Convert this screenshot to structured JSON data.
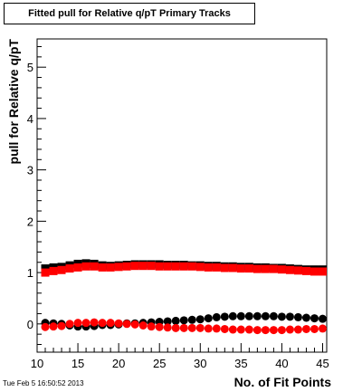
{
  "chart_data": {
    "type": "scatter",
    "title": "Fitted pull for Relative q/pT Primary Tracks",
    "xlabel": "No. of Fit Points",
    "ylabel": "pull for Relative q/pT",
    "xlim": [
      10,
      45.5
    ],
    "ylim": [
      -0.55,
      5.55
    ],
    "xticks": [
      10,
      15,
      20,
      25,
      30,
      35,
      40,
      45
    ],
    "yticks": [
      0,
      1,
      2,
      3,
      4,
      5
    ],
    "grid": false,
    "legend": "none",
    "x": [
      11,
      12,
      13,
      14,
      15,
      16,
      17,
      18,
      19,
      20,
      21,
      22,
      23,
      24,
      25,
      26,
      27,
      28,
      29,
      30,
      31,
      32,
      33,
      34,
      35,
      36,
      37,
      38,
      39,
      40,
      41,
      42,
      43,
      44,
      45
    ],
    "series": [
      {
        "color": "#000000",
        "marker": "square",
        "values": [
          1.08,
          1.1,
          1.11,
          1.14,
          1.17,
          1.18,
          1.17,
          1.14,
          1.13,
          1.14,
          1.15,
          1.16,
          1.16,
          1.16,
          1.16,
          1.15,
          1.15,
          1.15,
          1.14,
          1.14,
          1.13,
          1.13,
          1.12,
          1.12,
          1.11,
          1.11,
          1.1,
          1.1,
          1.09,
          1.09,
          1.08,
          1.07,
          1.06,
          1.06,
          1.06
        ]
      },
      {
        "color": "#ff0000",
        "marker": "square",
        "values": [
          1.0,
          1.03,
          1.05,
          1.08,
          1.1,
          1.12,
          1.12,
          1.1,
          1.1,
          1.11,
          1.12,
          1.13,
          1.13,
          1.13,
          1.12,
          1.12,
          1.12,
          1.12,
          1.12,
          1.11,
          1.1,
          1.1,
          1.09,
          1.09,
          1.08,
          1.08,
          1.07,
          1.07,
          1.07,
          1.06,
          1.05,
          1.04,
          1.03,
          1.02,
          1.02
        ]
      },
      {
        "color": "#000000",
        "marker": "circle",
        "values": [
          0.02,
          0.01,
          0.0,
          -0.03,
          -0.05,
          -0.05,
          -0.04,
          -0.02,
          -0.02,
          -0.01,
          0.01,
          0.01,
          0.02,
          0.03,
          0.04,
          0.05,
          0.06,
          0.07,
          0.08,
          0.09,
          0.11,
          0.13,
          0.14,
          0.15,
          0.15,
          0.15,
          0.15,
          0.15,
          0.15,
          0.14,
          0.14,
          0.13,
          0.12,
          0.11,
          0.1
        ]
      },
      {
        "color": "#ff0000",
        "marker": "circle",
        "values": [
          -0.06,
          -0.05,
          -0.04,
          0.0,
          0.02,
          0.02,
          0.03,
          0.02,
          0.02,
          0.01,
          0.0,
          -0.01,
          -0.03,
          -0.05,
          -0.06,
          -0.07,
          -0.08,
          -0.08,
          -0.08,
          -0.08,
          -0.09,
          -0.09,
          -0.1,
          -0.11,
          -0.11,
          -0.11,
          -0.12,
          -0.12,
          -0.12,
          -0.12,
          -0.11,
          -0.11,
          -0.1,
          -0.1,
          -0.09
        ]
      }
    ]
  },
  "timestamp": "Tue Feb  5 16:50:52 2013"
}
